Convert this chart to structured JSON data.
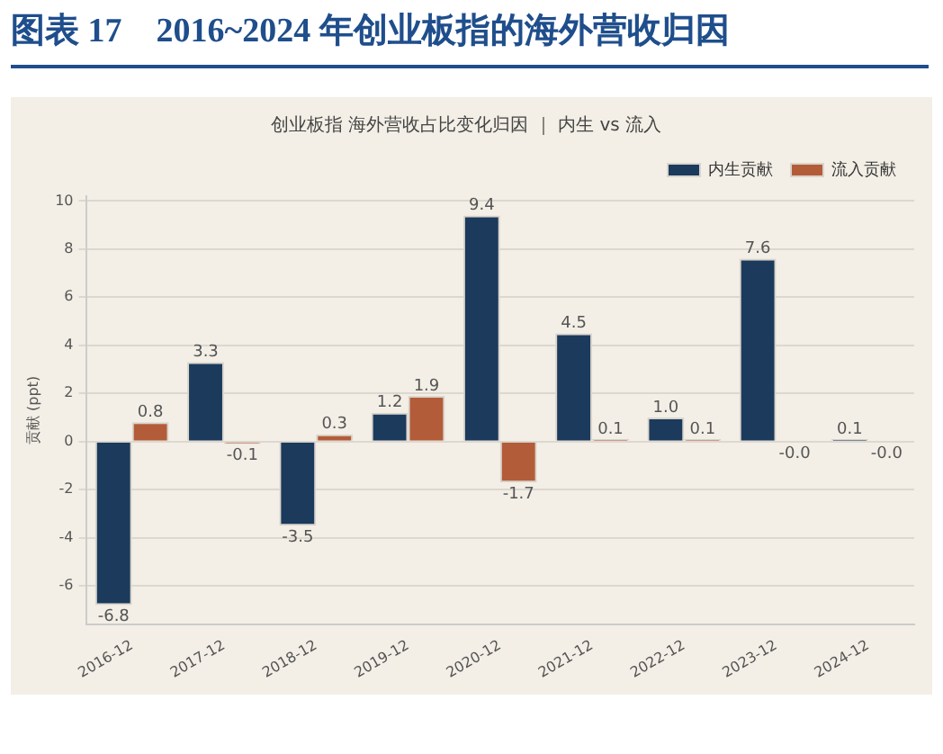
{
  "chart_data": {
    "type": "bar",
    "title": "图表 17　2016~2024 年创业板指的海外营收归因",
    "subtitle": "创业板指 海外营收占比变化归因 ｜ 内生 vs 流入",
    "ylabel": "贡献 (ppt)",
    "categories": [
      "2016-12",
      "2017-12",
      "2018-12",
      "2019-12",
      "2020-12",
      "2021-12",
      "2022-12",
      "2023-12",
      "2024-12"
    ],
    "series": [
      {
        "name": "内生贡献",
        "color": "#1b3a5c",
        "values": [
          -6.8,
          3.3,
          -3.5,
          1.2,
          9.4,
          4.5,
          1.0,
          7.6,
          0.1
        ],
        "value_labels": [
          "-6.8",
          "3.3",
          "-3.5",
          "1.2",
          "9.4",
          "4.5",
          "1.0",
          "7.6",
          "0.1"
        ]
      },
      {
        "name": "流入贡献",
        "color": "#b35c3a",
        "values": [
          0.8,
          -0.1,
          0.3,
          1.9,
          -1.7,
          0.1,
          0.1,
          -0.04,
          -0.04
        ],
        "value_labels": [
          "0.8",
          "-0.1",
          "0.3",
          "1.9",
          "-1.7",
          "0.1",
          "0.1",
          "-0.0",
          "-0.0"
        ]
      }
    ],
    "ylim": [
      -7.6,
      10.2
    ],
    "yticks": [
      -6,
      -4,
      -2,
      0,
      2,
      4,
      6,
      8,
      10
    ],
    "grid": "y",
    "legend": "top right"
  }
}
